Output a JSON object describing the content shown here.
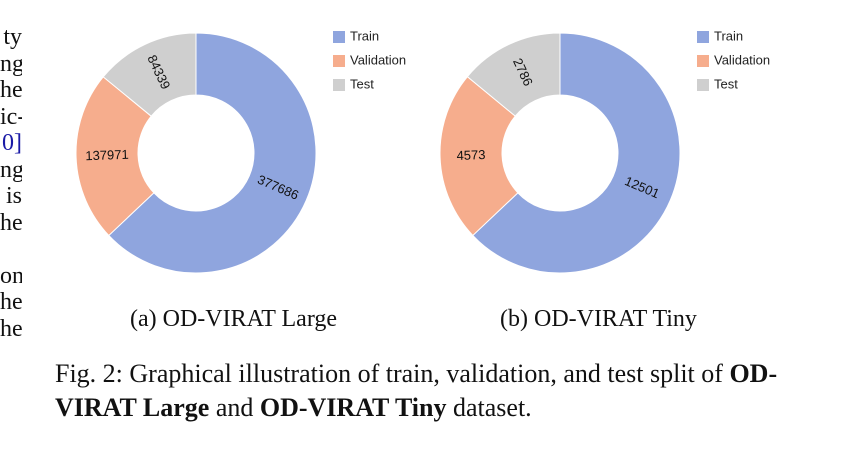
{
  "left_column_fragments": [
    "ty",
    "ng",
    "he",
    "ic-",
    "0]",
    "ng",
    "is",
    "he",
    "",
    "on",
    "he",
    "he"
  ],
  "legend_labels": [
    "Train",
    "Validation",
    "Test"
  ],
  "colors": {
    "train": "#8fa5de",
    "validation": "#f6ad8d",
    "test": "#cfcfcf"
  },
  "chart_data": [
    {
      "type": "pie",
      "categories": [
        "Train",
        "Validation",
        "Test"
      ],
      "values": [
        377686,
        137971,
        84339
      ],
      "title": ""
    },
    {
      "type": "pie",
      "categories": [
        "Train",
        "Validation",
        "Test"
      ],
      "values": [
        12501,
        4573,
        2786
      ],
      "title": ""
    }
  ],
  "subcaptions": [
    "(a) OD-VIRAT Large",
    "(b) OD-VIRAT Tiny"
  ],
  "caption": {
    "prefix": "Fig. 2: Graphical illustration of train, validation, and test split of ",
    "bold1": "OD-VIRAT Large",
    "middle": " and ",
    "bold2": "OD-VIRAT Tiny",
    "suffix": " dataset."
  }
}
